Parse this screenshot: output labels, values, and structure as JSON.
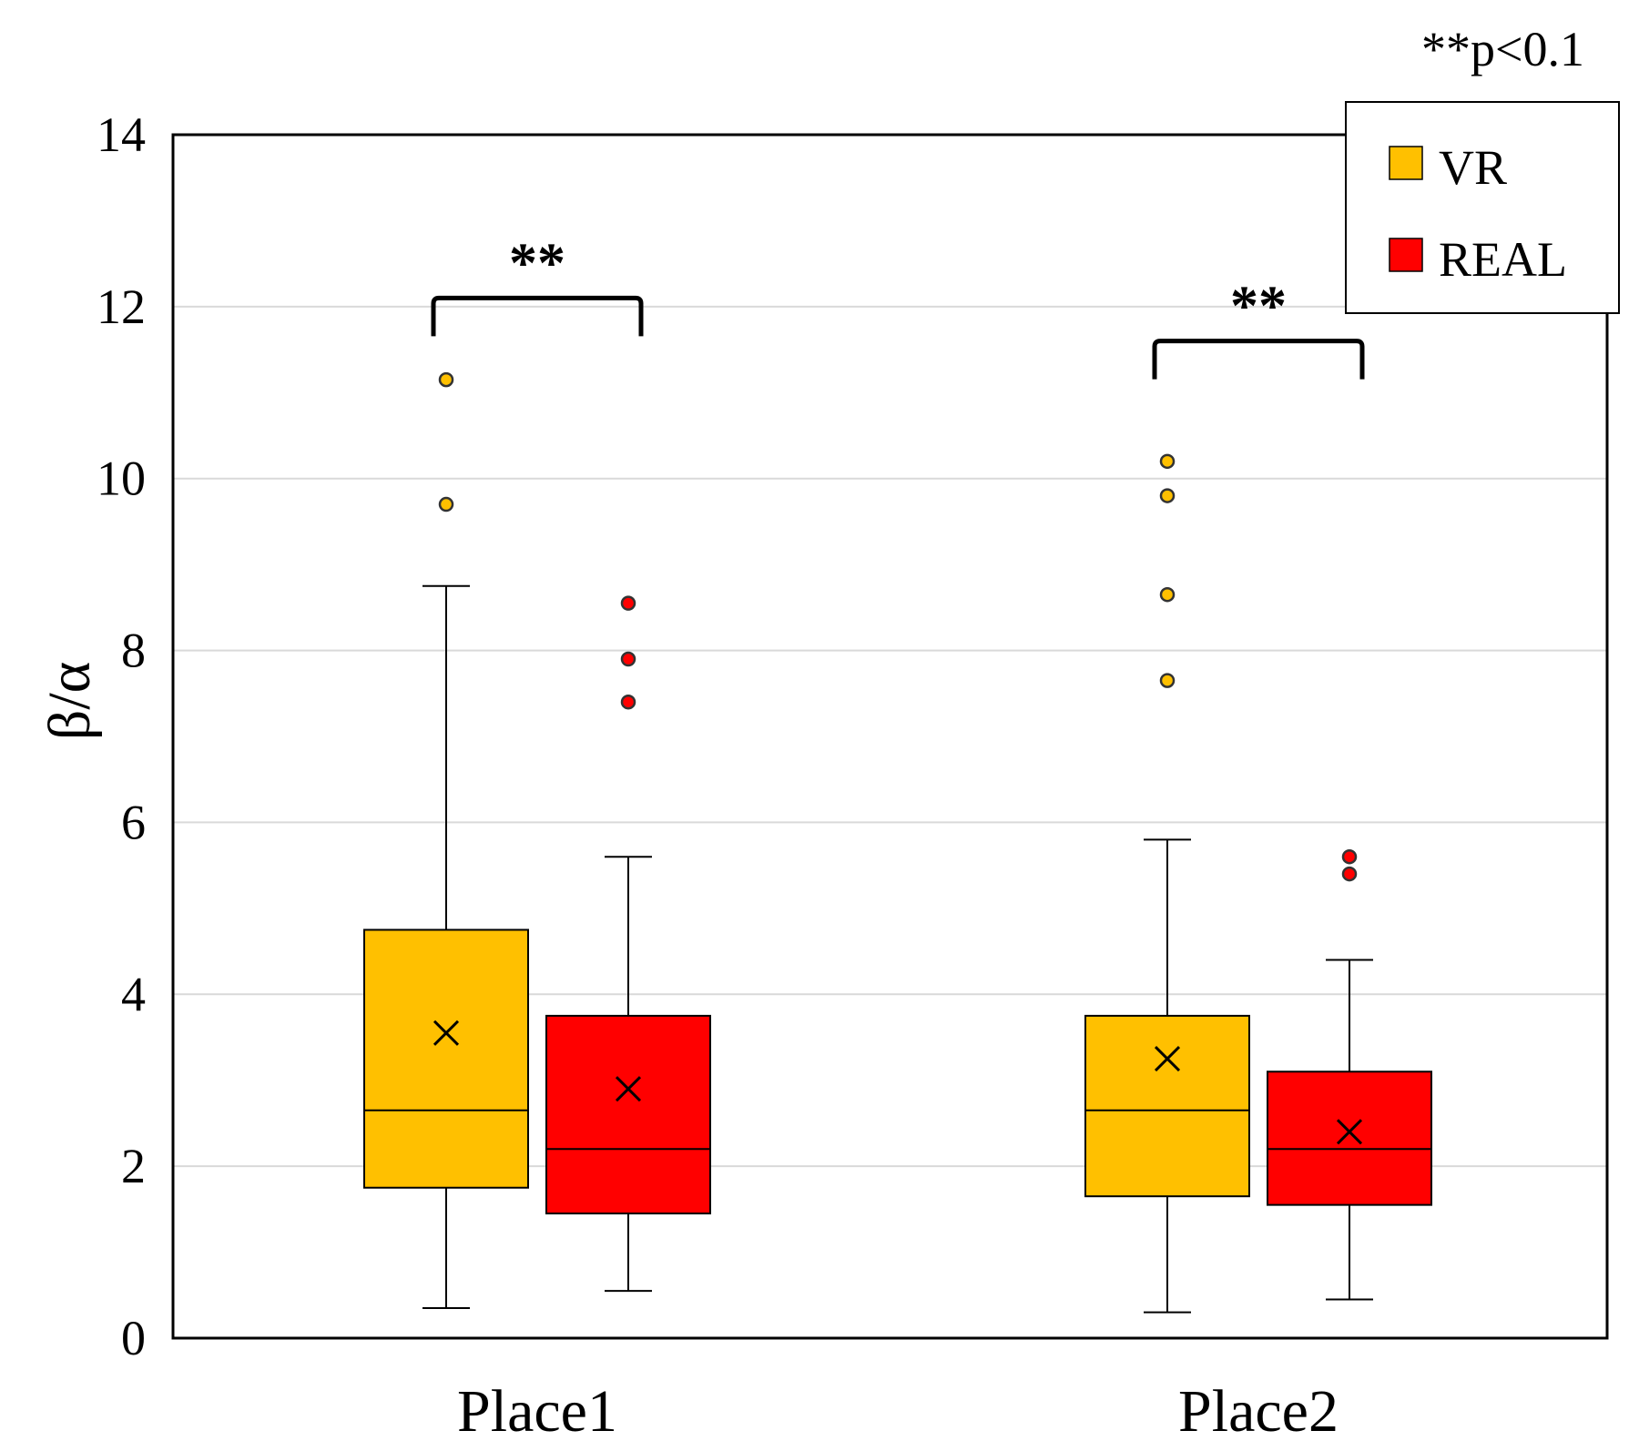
{
  "chart_data": {
    "type": "boxplot",
    "title": "",
    "xlabel": "",
    "ylabel": "β/α",
    "ylim": [
      0,
      14
    ],
    "yticks": [
      0,
      2,
      4,
      6,
      8,
      10,
      12,
      14
    ],
    "ytick_labels": [
      "0",
      "2",
      "4",
      "6",
      "8",
      "10",
      "12",
      "14"
    ],
    "grid": true,
    "legend_position": "top-right",
    "significance_note": "**p<0.1",
    "categories": [
      "Place1",
      "Place2"
    ],
    "series": [
      {
        "name": "VR",
        "color": "#FFC000",
        "boxes": [
          {
            "category": "Place1",
            "whisker_low": 0.35,
            "q1": 1.75,
            "median": 2.65,
            "q3": 4.75,
            "whisker_high": 8.75,
            "mean": 3.55,
            "outliers": [
              9.7,
              11.15
            ]
          },
          {
            "category": "Place2",
            "whisker_low": 0.3,
            "q1": 1.65,
            "median": 2.65,
            "q3": 3.75,
            "whisker_high": 5.8,
            "mean": 3.25,
            "outliers": [
              7.65,
              8.65,
              9.8,
              10.2
            ]
          }
        ]
      },
      {
        "name": "REAL",
        "color": "#FF0000",
        "boxes": [
          {
            "category": "Place1",
            "whisker_low": 0.55,
            "q1": 1.45,
            "median": 2.2,
            "q3": 3.75,
            "whisker_high": 5.6,
            "mean": 2.9,
            "outliers": [
              7.4,
              7.9,
              8.55
            ]
          },
          {
            "category": "Place2",
            "whisker_low": 0.45,
            "q1": 1.55,
            "median": 2.2,
            "q3": 3.1,
            "whisker_high": 4.4,
            "mean": 2.4,
            "outliers": [
              5.4,
              5.6
            ]
          }
        ]
      }
    ],
    "annotations": [
      {
        "category": "Place1",
        "text": "**",
        "bracket_y": 12.1
      },
      {
        "category": "Place2",
        "text": "**",
        "bracket_y": 11.6
      }
    ]
  }
}
